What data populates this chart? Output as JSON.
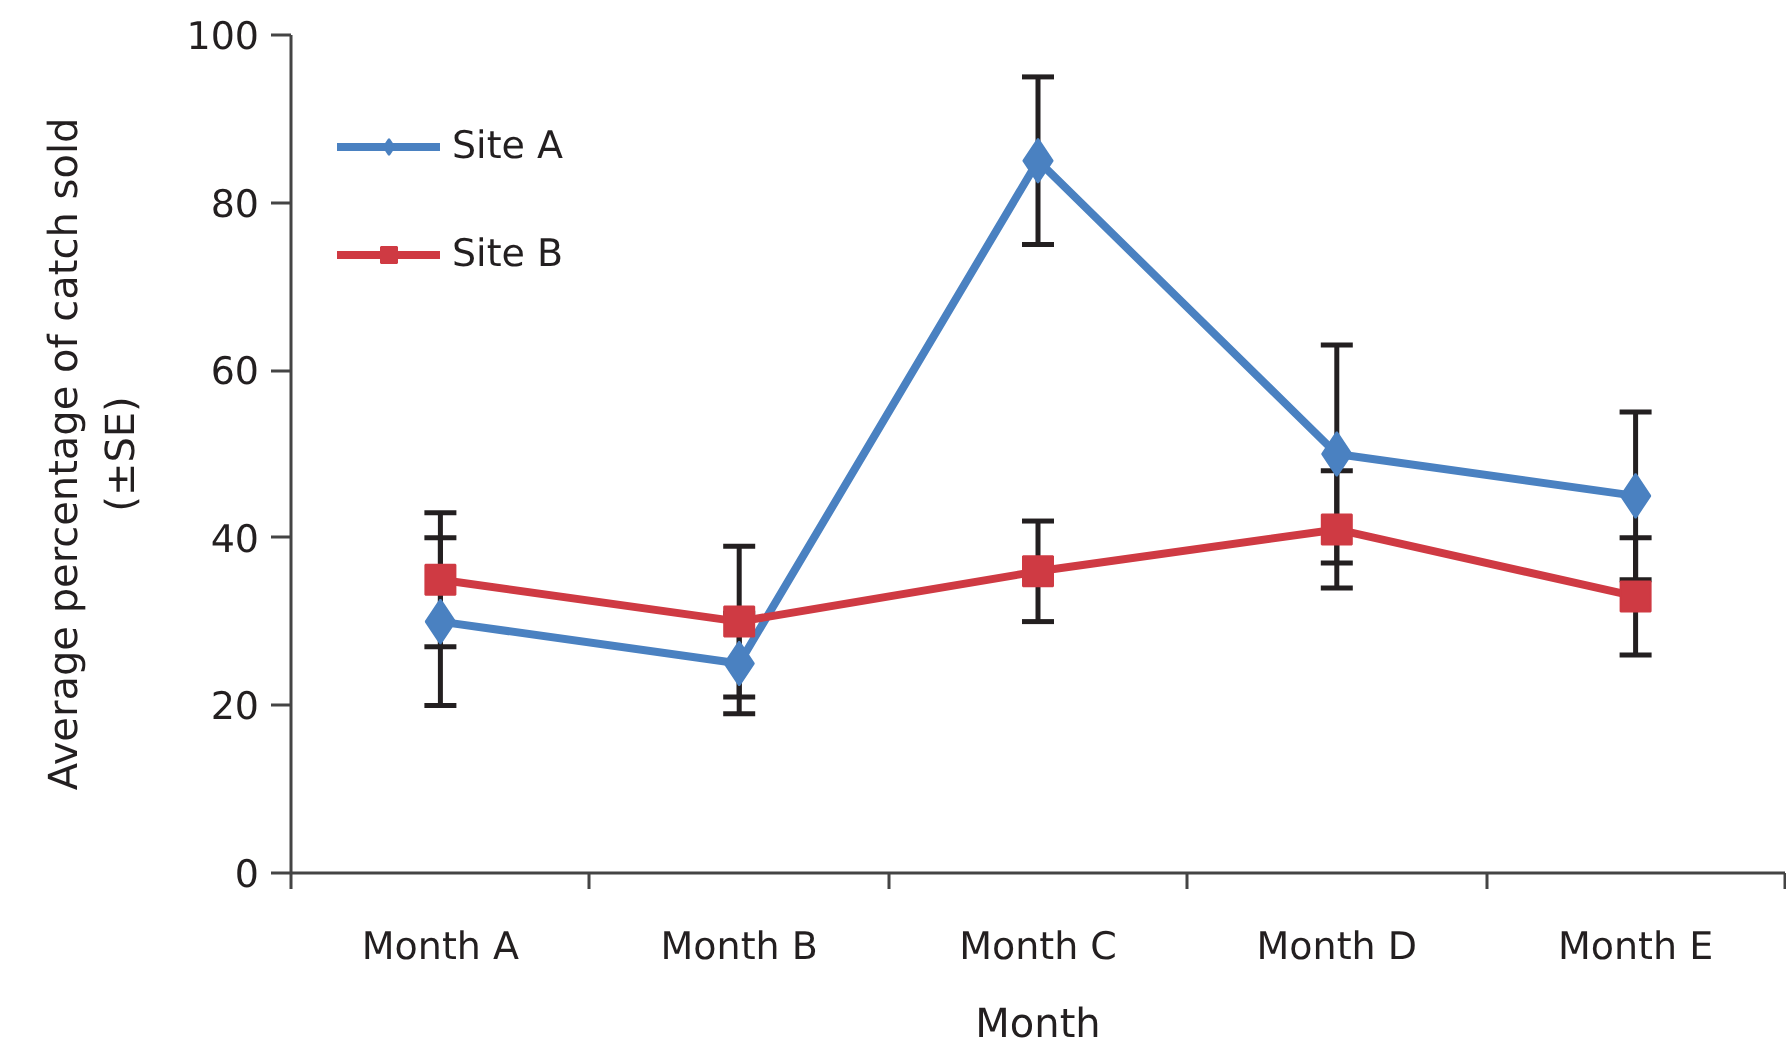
{
  "chart_data": {
    "type": "line",
    "xlabel": "Month",
    "ylabel": "Average percentage of catch sold (±SE)",
    "categories": [
      "Month A",
      "Month B",
      "Month C",
      "Month D",
      "Month E"
    ],
    "ylim": [
      0,
      100
    ],
    "yticks": [
      0,
      20,
      40,
      60,
      80,
      100
    ],
    "grid": false,
    "legend": "top left",
    "line_style": "solid",
    "series": [
      {
        "name": "Site A",
        "color": "#4a81c1",
        "marker": "diamond",
        "values": [
          30,
          25,
          85,
          50,
          45
        ],
        "errors": [
          10,
          6,
          10,
          13,
          10
        ]
      },
      {
        "name": "Site B",
        "color": "#cf3a43",
        "marker": "square",
        "values": [
          35,
          30,
          36,
          41,
          33
        ],
        "errors": [
          8,
          9,
          6,
          7,
          7
        ]
      }
    ]
  }
}
